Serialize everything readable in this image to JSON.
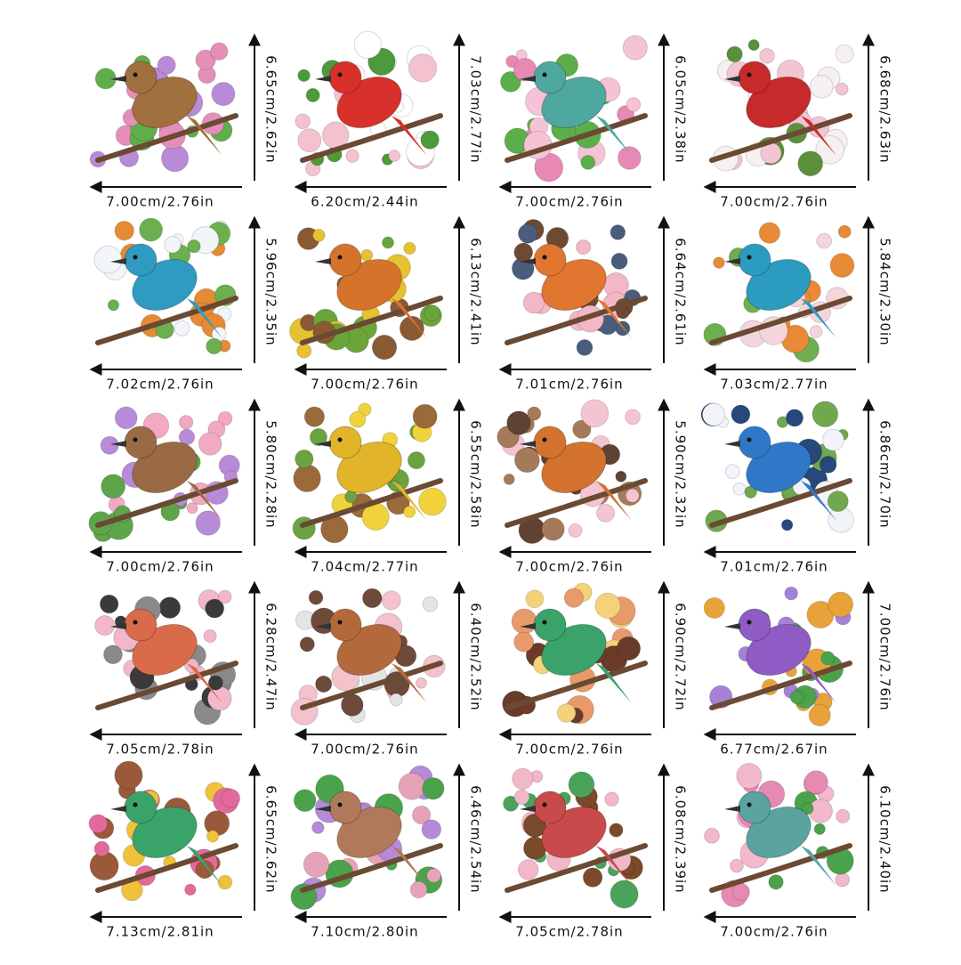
{
  "items": [
    {
      "height": "6.65cm/2.62in",
      "width": "7.00cm/2.76in"
    },
    {
      "height": "7.03cm/2.77in",
      "width": "6.20cm/2.44in"
    },
    {
      "height": "6.05cm/2.38in",
      "width": "7.00cm/2.76in"
    },
    {
      "height": "6.68cm/2.63in",
      "width": "7.00cm/2.76in"
    },
    {
      "height": "5.96cm/2.35in",
      "width": "7.02cm/2.76in"
    },
    {
      "height": "6.13cm/2.41in",
      "width": "7.00cm/2.76in"
    },
    {
      "height": "6.64cm/2.61in",
      "width": "7.01cm/2.76in"
    },
    {
      "height": "5.84cm/2.30in",
      "width": "7.03cm/2.77in"
    },
    {
      "height": "5.80cm/2.28in",
      "width": "7.00cm/2.76in"
    },
    {
      "height": "6.55cm/2.58in",
      "width": "7.04cm/2.77in"
    },
    {
      "height": "5.90cm/2.32in",
      "width": "7.00cm/2.76in"
    },
    {
      "height": "6.86cm/2.70in",
      "width": "7.01cm/2.76in"
    },
    {
      "height": "6.28cm/2.47in",
      "width": "7.05cm/2.78in"
    },
    {
      "height": "6.40cm/2.52in",
      "width": "7.00cm/2.76in"
    },
    {
      "height": "6.90cm/2.72in",
      "width": "7.00cm/2.76in"
    },
    {
      "height": "7.00cm/2.76in",
      "width": "6.77cm/2.67in"
    },
    {
      "height": "6.65cm/2.62in",
      "width": "7.13cm/2.81in"
    },
    {
      "height": "6.46cm/2.54in",
      "width": "7.10cm/2.80in"
    },
    {
      "height": "6.08cm/2.39in",
      "width": "7.05cm/2.78in"
    },
    {
      "height": "6.10cm/2.40in",
      "width": "7.00cm/2.76in"
    }
  ]
}
